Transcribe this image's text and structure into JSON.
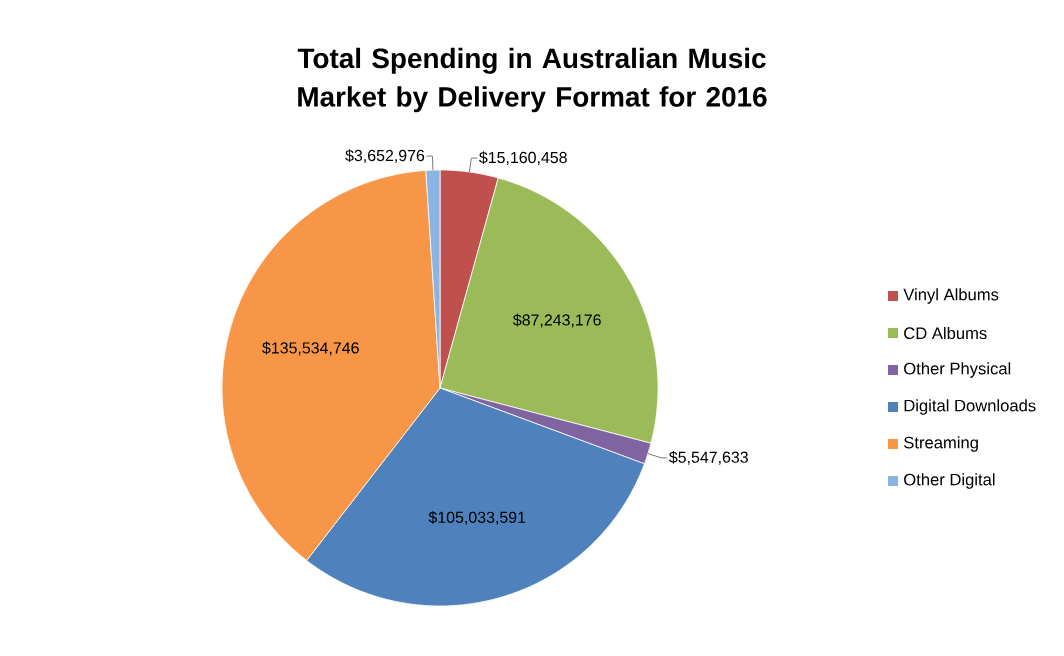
{
  "chart_data": {
    "type": "pie",
    "title": "Total Spending in Australian Music Market by Delivery Format for 2016",
    "categories": [
      "Vinyl Albums",
      "CD Albums",
      "Other Physical",
      "Digital Downloads",
      "Streaming",
      "Other Digital"
    ],
    "values": [
      15160458,
      87243176,
      5547633,
      105033591,
      135534746,
      3652976
    ],
    "value_labels": [
      "$15,160,458",
      "$87,243,176",
      "$5,547,633",
      "$105,033,591",
      "$135,534,746",
      "$3,652,976"
    ],
    "colors": [
      "#c0504d",
      "#9bbb59",
      "#8064a2",
      "#4f81bd",
      "#f79646",
      "#8db3e2"
    ],
    "legend": "right"
  }
}
